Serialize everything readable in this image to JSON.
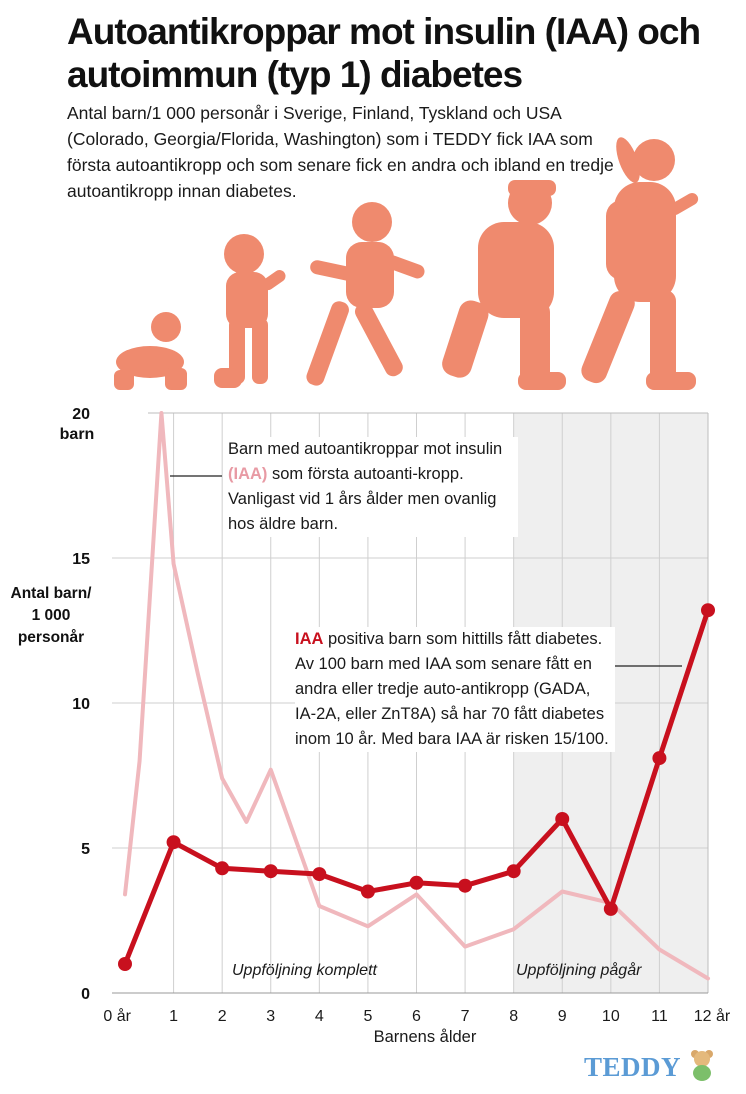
{
  "title": "Autoantikroppar mot insulin (IAA) och autoimmun (typ 1) diabetes",
  "subtitle": "Antal barn/1 000 personår i Sverige, Finland, Tyskland och USA (Colorado, Georgia/Florida, Washington) som i TEDDY fick IAA som första autoantikropp och som senare fick en andra och ibland en tredje autoantikropp innan diabetes.",
  "annotation_iaa_first": {
    "pre": "Barn med autoantikroppar mot insulin ",
    "highlight": "(IAA)",
    "post": " som första autoanti-kropp. Vanligast vid 1 års ålder men ovanlig hos äldre barn."
  },
  "annotation_iaa_diabetes": {
    "highlight": "IAA",
    "post": " positiva barn som hittills fått diabetes. Av 100 barn med IAA som senare fått en andra eller tredje auto-antikropp (GADA, IA-2A, eller ZnT8A) så har 70 fått diabetes inom 10 år. Med bara IAA är risken 15/100."
  },
  "y_axis_label": "Antal barn/ 1 000 personår",
  "y_top_unit": "barn",
  "x_axis_label": "Barnens ålder",
  "followup_complete": "Uppföljning komplett",
  "followup_ongoing": "Uppföljning pågår",
  "logo": "TEDDY",
  "colors": {
    "pink_series": "#f0b8bd",
    "red_series": "#c8101e",
    "silhouette": "#ef8a6e",
    "shaded_region": "#efefef",
    "grid": "#cfcfcf"
  },
  "icons": [
    "baby-crawling-icon",
    "toddler-icon",
    "child-running-icon",
    "child-cap-walking-icon",
    "girl-ponytail-icon",
    "teddy-bear-icon"
  ],
  "chart_data": {
    "type": "line",
    "x_tick_labels": [
      "0 år",
      "1",
      "2",
      "3",
      "4",
      "5",
      "6",
      "7",
      "8",
      "9",
      "10",
      "11",
      "12 år"
    ],
    "y_tick_labels": [
      "0",
      "5",
      "10",
      "15",
      "20"
    ],
    "ylim": [
      0,
      20
    ],
    "xlim": [
      0,
      12
    ],
    "shaded_from_x": 8,
    "series": [
      {
        "role": "iaa_first",
        "x": [
          0,
          0.3,
          0.75,
          1,
          1.5,
          2,
          2.5,
          3,
          4,
          5,
          6,
          7,
          8,
          9,
          10,
          11,
          12
        ],
        "values": [
          3.4,
          8.0,
          20.0,
          14.8,
          11.0,
          7.4,
          5.9,
          7.7,
          3.0,
          2.3,
          3.4,
          1.6,
          2.2,
          3.5,
          3.1,
          1.5,
          0.5
        ]
      },
      {
        "role": "iaa_diabetes",
        "x": [
          0,
          1,
          2,
          3,
          4,
          5,
          6,
          7,
          8,
          9,
          10,
          11,
          12
        ],
        "values": [
          1.0,
          5.2,
          4.3,
          4.2,
          4.1,
          3.5,
          3.8,
          3.7,
          4.2,
          6.0,
          2.9,
          8.1,
          13.2
        ]
      }
    ]
  }
}
